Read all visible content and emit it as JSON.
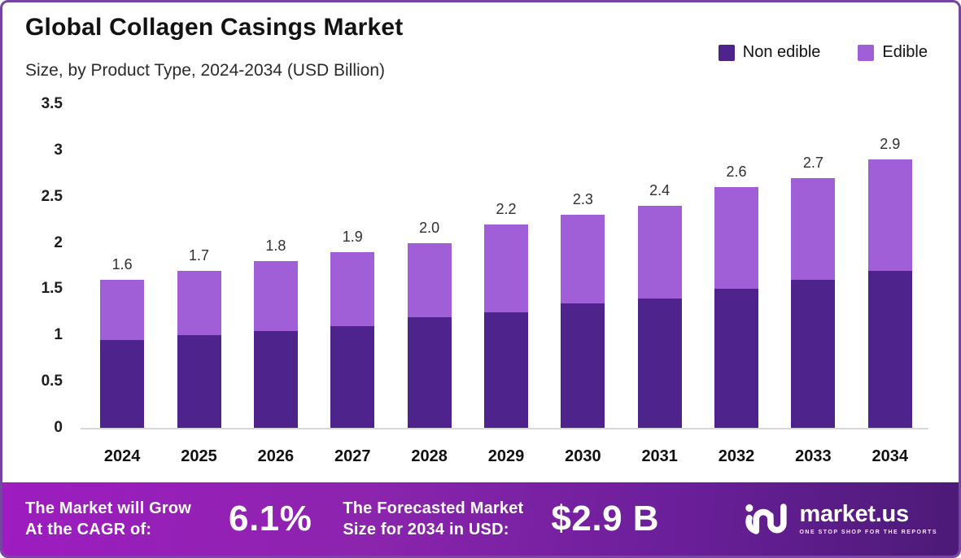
{
  "header": {
    "title": "Global Collagen Casings Market",
    "subtitle": "Size, by Product Type, 2024-2034 (USD Billion)"
  },
  "legend": {
    "items": [
      {
        "label": "Non edible",
        "color": "#4f238c"
      },
      {
        "label": "Edible",
        "color": "#a05fd7"
      }
    ]
  },
  "chart_data": {
    "type": "bar",
    "stacked": true,
    "title": "Global Collagen Casings Market",
    "subtitle": "Size, by Product Type, 2024-2034 (USD Billion)",
    "unit": "USD Billion",
    "categories": [
      "2024",
      "2025",
      "2026",
      "2027",
      "2028",
      "2029",
      "2030",
      "2031",
      "2032",
      "2033",
      "2034"
    ],
    "series": [
      {
        "name": "Non edible",
        "color": "#4f238c",
        "values": [
          0.95,
          1.0,
          1.05,
          1.1,
          1.2,
          1.25,
          1.35,
          1.4,
          1.5,
          1.6,
          1.7
        ]
      },
      {
        "name": "Edible",
        "color": "#a05fd7",
        "values": [
          0.65,
          0.7,
          0.75,
          0.8,
          0.8,
          0.95,
          0.95,
          1.0,
          1.1,
          1.1,
          1.2
        ]
      }
    ],
    "totals": [
      1.6,
      1.7,
      1.8,
      1.9,
      2.0,
      2.2,
      2.3,
      2.4,
      2.6,
      2.7,
      2.9
    ],
    "total_labels": [
      "1.6",
      "1.7",
      "1.8",
      "1.9",
      "2.0",
      "2.2",
      "2.3",
      "2.4",
      "2.6",
      "2.7",
      "2.9"
    ],
    "ylim": [
      0,
      3.5
    ],
    "yticks": [
      3.5,
      3,
      2.5,
      2,
      1.5,
      1,
      0.5,
      0
    ],
    "ytick_labels": [
      "3.5",
      "3",
      "2.5",
      "2",
      "1.5",
      "1",
      "0.5",
      "0"
    ],
    "grid": false,
    "legend_position": "top-right"
  },
  "banner": {
    "cagr_label_line1": "The Market will Grow",
    "cagr_label_line2": "At the CAGR of:",
    "cagr_value": "6.1%",
    "forecast_label_line1": "The Forecasted Market",
    "forecast_label_line2": "Size for 2034 in USD:",
    "forecast_value": "$2.9 B",
    "logo": {
      "name": "market.us",
      "tagline": "ONE STOP SHOP FOR THE REPORTS"
    }
  }
}
